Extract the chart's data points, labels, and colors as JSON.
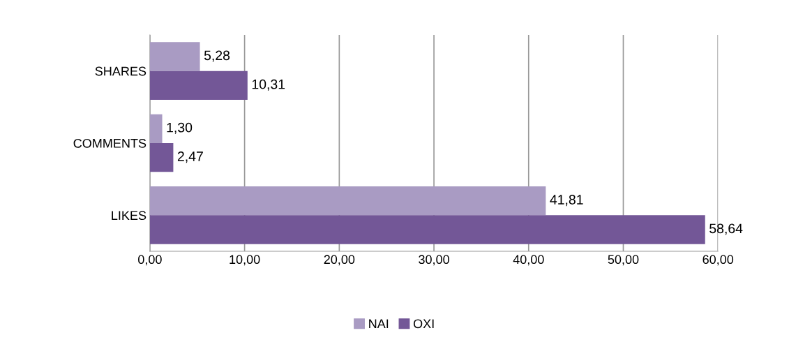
{
  "chart_data": {
    "type": "bar",
    "orientation": "horizontal",
    "categories": [
      "SHARES",
      "COMMENTS",
      "LIKES"
    ],
    "series": [
      {
        "name": "NAI",
        "color": "#a99bc3",
        "values": [
          5.28,
          1.3,
          41.81
        ],
        "value_labels": [
          "5,28",
          "1,30",
          "41,81"
        ]
      },
      {
        "name": "OXI",
        "color": "#735797",
        "values": [
          10.31,
          2.47,
          58.64
        ],
        "value_labels": [
          "10,31",
          "2,47",
          "58,64"
        ]
      }
    ],
    "xlim": [
      0,
      60
    ],
    "xticks": [
      {
        "value": 0,
        "label": "0,00"
      },
      {
        "value": 10,
        "label": "10,00"
      },
      {
        "value": 20,
        "label": "20,00"
      },
      {
        "value": 30,
        "label": "30,00"
      },
      {
        "value": 40,
        "label": "40,00"
      },
      {
        "value": 50,
        "label": "50,00"
      },
      {
        "value": 60,
        "label": "60,00"
      }
    ],
    "grid": "x",
    "legend": "bottom"
  }
}
